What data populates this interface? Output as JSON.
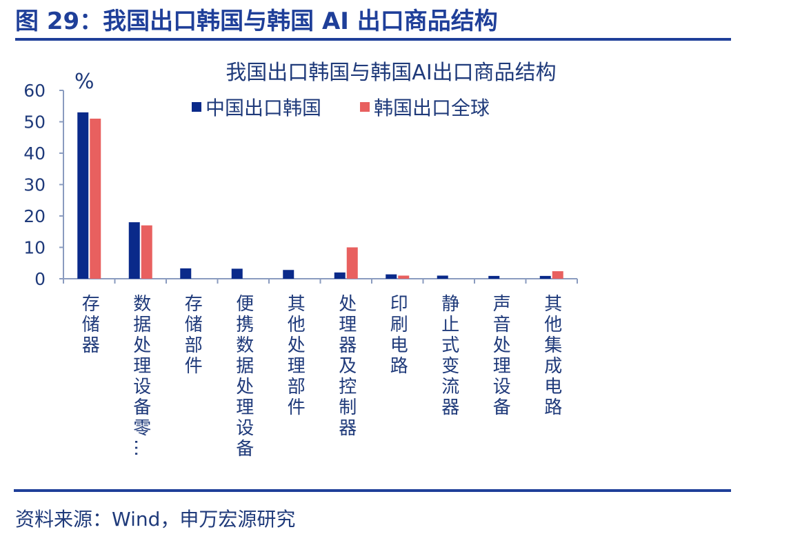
{
  "header": {
    "title": "图 29：我国出口韩国与韩国 AI 出口商品结构"
  },
  "chart_data": {
    "type": "bar",
    "title": "我国出口韩国与韩国AI出口商品结构",
    "y_unit": "%",
    "categories": [
      "存储器",
      "数据处理设备零…",
      "存储部件",
      "便携数据处理设备",
      "其他处理部件",
      "处理器及控制器",
      "印刷电路",
      "静止式变流器",
      "声音处理设备",
      "其他集成电路"
    ],
    "series": [
      {
        "name": "中国出口韩国",
        "color": "#0a2a8a",
        "values": [
          53,
          18,
          3.3,
          3.2,
          2.8,
          2,
          1.4,
          1,
          0.9,
          0.9
        ]
      },
      {
        "name": "韩国出口全球",
        "color": "#e8605f",
        "values": [
          51,
          17,
          0,
          0,
          0,
          10,
          1,
          0,
          0,
          2.4
        ]
      }
    ],
    "ylim": [
      0,
      60
    ],
    "yticks": [
      0,
      10,
      20,
      30,
      40,
      50,
      60
    ]
  },
  "footer": {
    "source": "资料来源：Wind，申万宏源研究"
  }
}
